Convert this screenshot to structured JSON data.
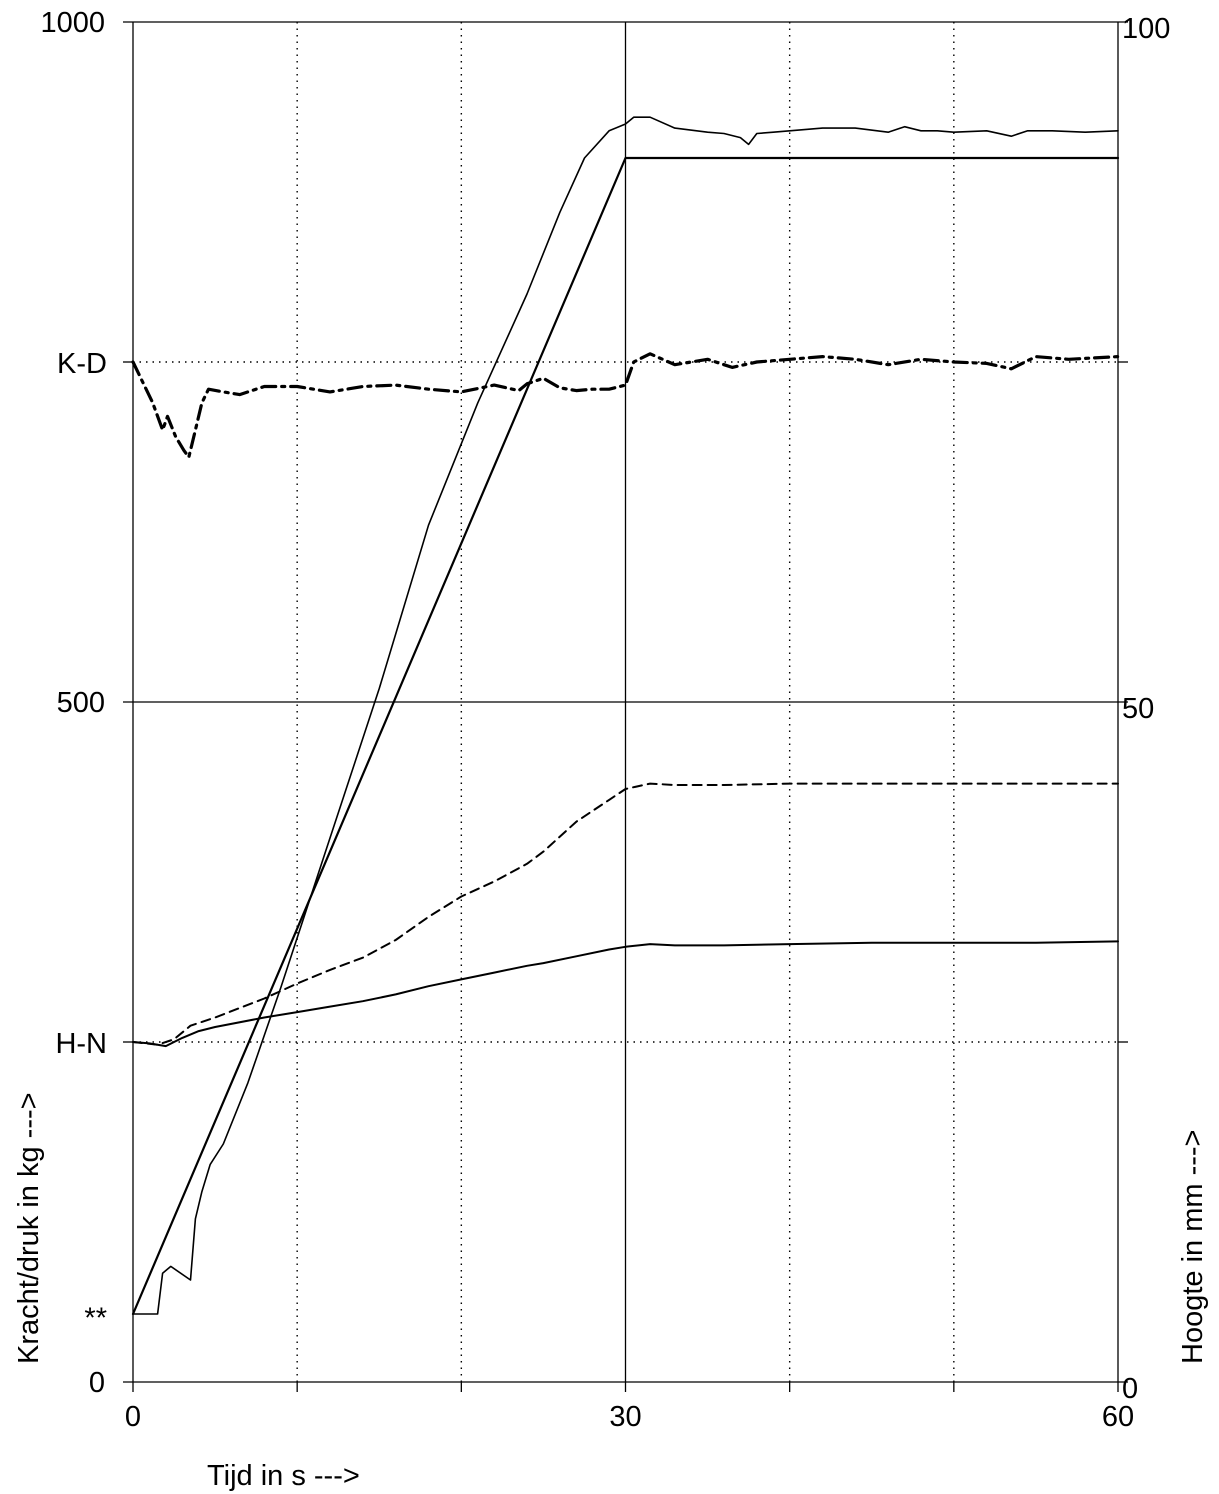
{
  "chart_data": {
    "type": "line",
    "xlabel": "Tijd in s --->",
    "ylabel_left": "Kracht/druk in kg --->",
    "ylabel_right": "Hoogte in mm --->",
    "xlim": [
      0,
      60
    ],
    "ylim_left": [
      0,
      1000
    ],
    "ylim_right": [
      0,
      100
    ],
    "x_ticks": [
      "0",
      "30",
      "60"
    ],
    "y_ticks_left": [
      "0",
      "500",
      "1000"
    ],
    "y_ticks_right": [
      "0",
      "50",
      "100"
    ],
    "y_markers": [
      {
        "label": "K-D",
        "value": 750
      },
      {
        "label": "H-N",
        "value": 250
      },
      {
        "label": "**",
        "value": 40
      }
    ],
    "series": [
      {
        "axis": "right",
        "style": "solid",
        "width": 2.2,
        "x": [
          0,
          30,
          60
        ],
        "y": [
          5,
          90,
          90
        ]
      },
      {
        "axis": "right",
        "style": "solid",
        "width": 1.6,
        "x": [
          0,
          1.5,
          1.8,
          2.3,
          3.5,
          3.8,
          4.2,
          4.7,
          5.5,
          7,
          9,
          12,
          15,
          18,
          21,
          24,
          26,
          27.5,
          29,
          30,
          30.5,
          31.5,
          33,
          35,
          36,
          37,
          37.5,
          38,
          39,
          40,
          42,
          44,
          46,
          47,
          48,
          49,
          50,
          52,
          53.5,
          54.5,
          56,
          58,
          60
        ],
        "y": [
          5,
          5,
          8,
          8.5,
          7.5,
          12,
          14,
          16,
          17.5,
          22,
          29,
          40,
          51,
          63,
          72,
          80,
          86,
          90,
          92,
          92.5,
          93,
          93,
          92.2,
          91.9,
          91.8,
          91.5,
          91,
          91.8,
          91.9,
          92,
          92.2,
          92.2,
          91.9,
          92.3,
          92,
          92,
          91.9,
          92,
          91.6,
          92,
          92,
          91.9,
          92
        ]
      },
      {
        "axis": "left",
        "style": "dashdot",
        "width": 3.2,
        "x": [
          0,
          1.2,
          1.8,
          2.1,
          2.6,
          3.1,
          3.4,
          3.8,
          4.2,
          4.6,
          5.5,
          6.5,
          8,
          10,
          12,
          14,
          16,
          18,
          20,
          22,
          23.5,
          24,
          25,
          26,
          27,
          28,
          29,
          30,
          30.5,
          31.5,
          33,
          35,
          36.5,
          38,
          40,
          42,
          44,
          46,
          48,
          50,
          52,
          53.5,
          55,
          57,
          60
        ],
        "y": [
          750,
          720,
          700,
          710,
          695,
          685,
          680,
          700,
          720,
          730,
          728,
          726,
          732,
          732,
          728,
          732,
          733,
          730,
          728,
          733,
          729,
          734,
          738,
          731,
          729,
          730,
          730,
          733,
          750,
          756,
          748,
          752,
          746,
          750,
          752,
          754,
          752,
          748,
          752,
          750,
          749,
          745,
          754,
          752,
          754
        ]
      },
      {
        "axis": "left",
        "style": "dashed",
        "width": 2,
        "x": [
          0,
          1.5,
          2.5,
          3.5,
          5,
          8,
          10,
          12,
          14,
          16,
          18,
          20,
          22,
          24,
          25,
          27,
          29,
          30,
          31.5,
          33,
          36,
          40,
          45,
          50,
          55,
          60
        ],
        "y": [
          250,
          248,
          252,
          262,
          268,
          282,
          293,
          303,
          312,
          325,
          342,
          357,
          368,
          381,
          390,
          412,
          428,
          436,
          440,
          439,
          439,
          440,
          440,
          440,
          440,
          440
        ]
      },
      {
        "axis": "left",
        "style": "solid",
        "width": 2,
        "x": [
          0,
          1,
          2,
          3,
          4,
          5,
          8,
          10,
          12,
          14,
          16,
          18,
          20,
          22,
          24,
          25,
          27,
          29,
          30,
          31.5,
          33,
          36,
          40,
          45,
          50,
          55,
          60
        ],
        "y": [
          250,
          249,
          247,
          253,
          258,
          261,
          268,
          272,
          276,
          280,
          285,
          291,
          296,
          301,
          306,
          308,
          313,
          318,
          320,
          322,
          321,
          321,
          322,
          323,
          323,
          323,
          324
        ]
      }
    ]
  }
}
